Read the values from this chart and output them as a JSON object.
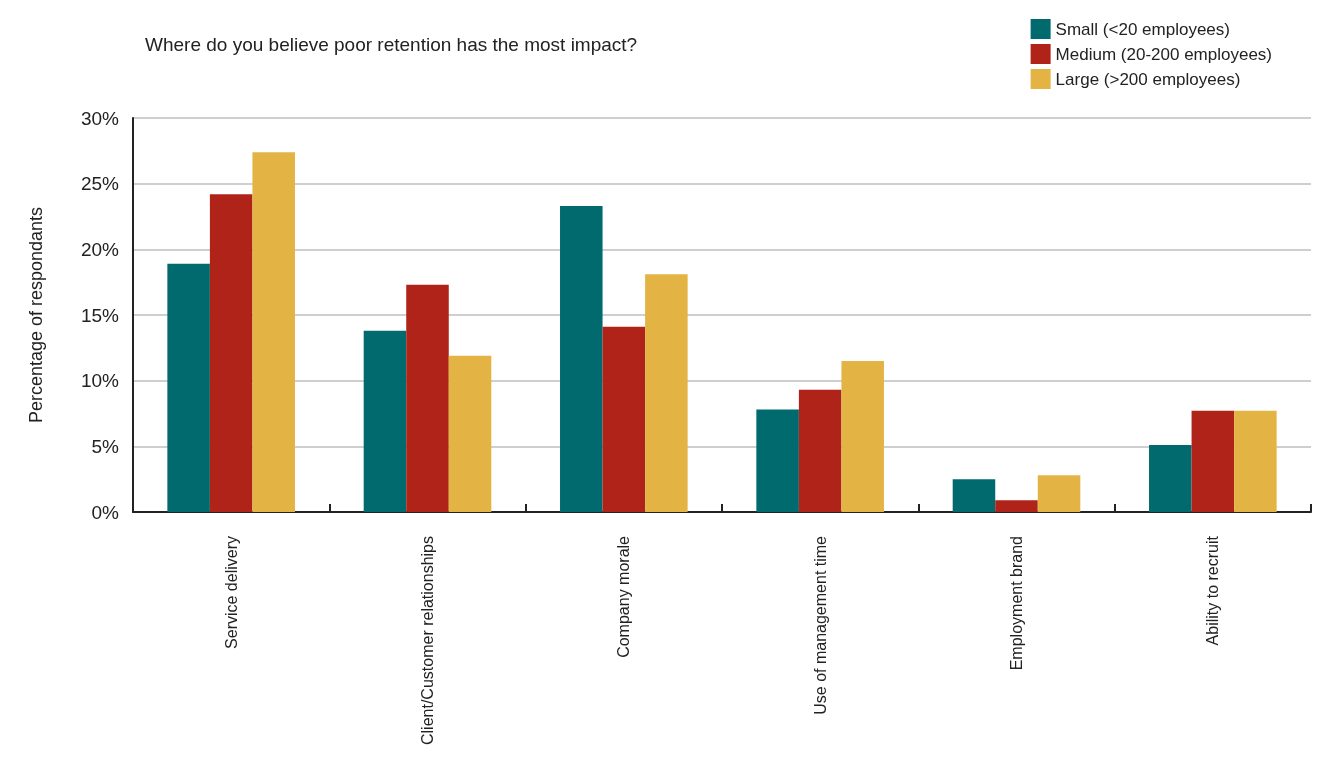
{
  "chart_data": {
    "type": "bar",
    "title": "Where do you believe poor retention has the most impact?",
    "ylabel": "Percentage of respondants",
    "categories": [
      "Service delivery",
      "Client/Customer relationships",
      "Company morale",
      "Use of management time",
      "Employment brand",
      "Ability to recruit"
    ],
    "series": [
      {
        "name": "Small (<20 employees)",
        "color": "#006a6e",
        "values": [
          18.9,
          13.8,
          23.3,
          7.8,
          2.5,
          5.1
        ]
      },
      {
        "name": "Medium (20-200 employees)",
        "color": "#b02318",
        "values": [
          24.2,
          17.3,
          14.1,
          9.3,
          0.9,
          7.7
        ]
      },
      {
        "name": "Large (>200 employees)",
        "color": "#e3b443",
        "values": [
          27.4,
          11.9,
          18.1,
          11.5,
          2.8,
          7.7
        ]
      }
    ],
    "ylim": [
      0,
      30
    ],
    "yticks": [
      {
        "value": 0,
        "label": "0%"
      },
      {
        "value": 5,
        "label": "5%"
      },
      {
        "value": 10,
        "label": "10%"
      },
      {
        "value": 15,
        "label": "15%"
      },
      {
        "value": 20,
        "label": "20%"
      },
      {
        "value": 25,
        "label": "25%"
      },
      {
        "value": 30,
        "label": "30%"
      }
    ],
    "grid": "y",
    "legend": "top right"
  }
}
